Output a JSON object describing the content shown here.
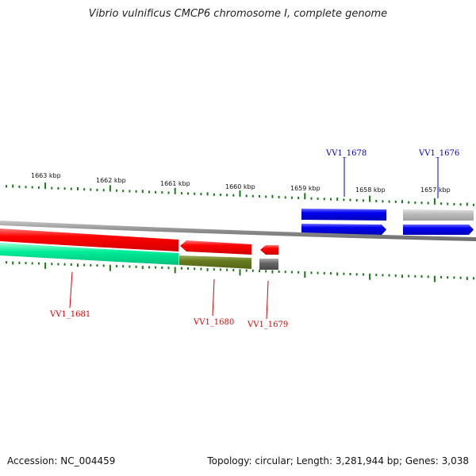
{
  "title": "Vibrio vulnificus CMCP6 chromosome I, complete genome",
  "footer": {
    "accession": "Accession: NC_004459",
    "summary": "Topology: circular; Length: 3,281,944 bp; Genes: 3,038"
  },
  "colors": {
    "backbone": "#8c8c8c",
    "tick": "#1a7a1a",
    "forward_label": "#0000bb",
    "reverse_label": "#dd0000"
  },
  "ticks": [
    "1663 kbp",
    "1662 kbp",
    "1661 kbp",
    "1660 kbp",
    "1659 kbp",
    "1658 kbp",
    "1657 kbp"
  ],
  "genes": [
    {
      "id": "VV1_1681",
      "color": "#ff0000",
      "label_color": "#dd0000"
    },
    {
      "id": "VV1_1680",
      "color": "#ff0000",
      "label_color": "#dd0000"
    },
    {
      "id": "VV1_1679",
      "color": "#ff0000",
      "label_color": "#dd0000"
    },
    {
      "id": "VV1_1678",
      "color": "#0000ee",
      "label_color": "#0000bb"
    },
    {
      "id": "VV1_1676",
      "color": "#0000ee",
      "label_color": "#0000bb"
    }
  ],
  "feature_bands": [
    {
      "name": "band-1681-lower",
      "color": "#00ee99"
    },
    {
      "name": "band-1680-lower",
      "color": "#667a1f"
    },
    {
      "name": "band-1679-lower",
      "color": "#666666"
    },
    {
      "name": "band-1676-upper",
      "color": "#bbbbbb"
    }
  ]
}
